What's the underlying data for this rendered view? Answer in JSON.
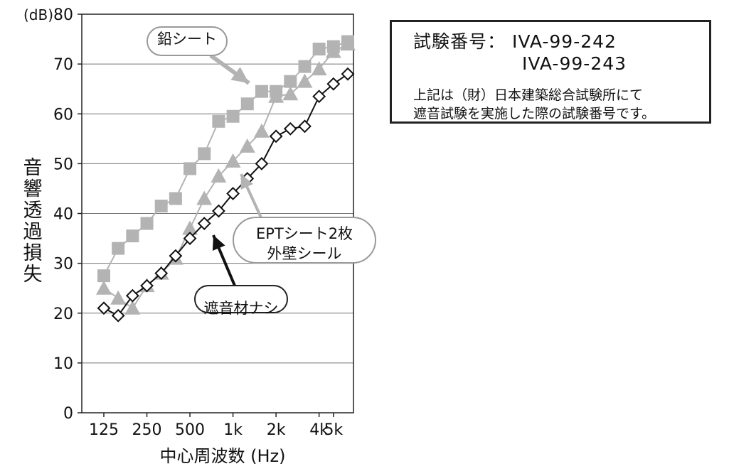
{
  "chart_data": {
    "type": "line",
    "ylabel": "音響透過損失",
    "yunit": "(dB)",
    "xlabel": "中心周波数 (Hz)",
    "ylim": [
      0,
      80
    ],
    "yticks": [
      0,
      10,
      20,
      30,
      40,
      50,
      60,
      70,
      80
    ],
    "x_scale": "log",
    "x": [
      125,
      160,
      200,
      250,
      315,
      400,
      500,
      630,
      800,
      1000,
      1250,
      1600,
      2000,
      2500,
      3150,
      4000,
      5000,
      6300
    ],
    "xtick_labels": [
      "125",
      "250",
      "500",
      "1k",
      "2k",
      "4k",
      "5k"
    ],
    "grid": true,
    "series": [
      {
        "name": "鉛シート",
        "color": "#b3b3b3",
        "marker": "square",
        "values": [
          27.5,
          33,
          35.5,
          38,
          41.5,
          43,
          49,
          52,
          58.5,
          59.5,
          62,
          64.5,
          64.5,
          66.5,
          69.5,
          73,
          73.5,
          74.5
        ]
      },
      {
        "name": "EPTシート2枚\n外壁シール",
        "color": "#b3b3b3",
        "marker": "triangle",
        "values": [
          25,
          23,
          21,
          25.5,
          28,
          31,
          37,
          43,
          47.5,
          50.5,
          53.5,
          56.5,
          63.5,
          64,
          66.5,
          69,
          72.5,
          74
        ]
      },
      {
        "name": "遮音材ナシ",
        "color": "#111111",
        "marker": "diamond",
        "values": [
          21,
          19.5,
          23.5,
          25.5,
          28,
          31.5,
          35,
          38,
          40.5,
          44,
          47,
          50,
          55.5,
          57,
          57.5,
          63.5,
          66,
          68
        ]
      }
    ],
    "annotations": [
      {
        "label": "鉛シート"
      },
      {
        "label": "EPTシート2枚\n外壁シール"
      },
      {
        "label": "遮音材ナシ"
      }
    ]
  },
  "info_box": {
    "line1": "試験番号： IVA-99-242",
    "line2": "IVA-99-243",
    "note1": "上記は（財）日本建築総合試験所にて",
    "note2": "遮音試験を実施した際の試験番号です。"
  }
}
